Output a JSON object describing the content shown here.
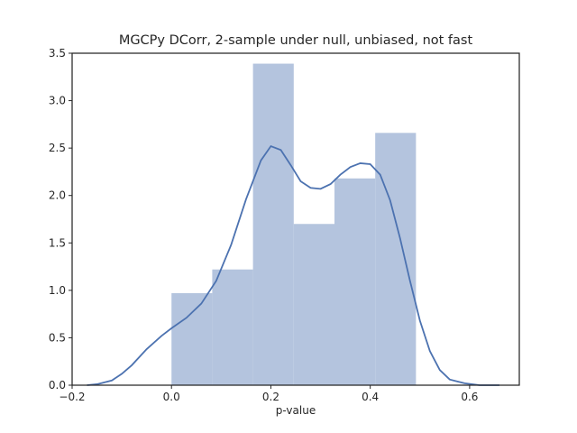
{
  "chart_data": {
    "type": "histogram",
    "title": "MGCPy DCorr, 2-sample under null, unbiased, not fast",
    "xlabel": "p-value",
    "ylabel": "",
    "xlim": [
      -0.2,
      0.7
    ],
    "ylim": [
      0.0,
      3.5
    ],
    "grid": false,
    "x_ticks": [
      -0.2,
      0.0,
      0.2,
      0.4,
      0.6
    ],
    "x_tick_labels": [
      "−0.2",
      "0.0",
      "0.2",
      "0.4",
      "0.6"
    ],
    "y_ticks": [
      0.0,
      0.5,
      1.0,
      1.5,
      2.0,
      2.5,
      3.0,
      3.5
    ],
    "y_tick_labels": [
      "0.0",
      "0.5",
      "1.0",
      "1.5",
      "2.0",
      "2.5",
      "3.0",
      "3.5"
    ],
    "bins": [
      {
        "x0": 0.0,
        "x1": 0.082,
        "density": 0.97
      },
      {
        "x0": 0.082,
        "x1": 0.164,
        "density": 1.22
      },
      {
        "x0": 0.164,
        "x1": 0.246,
        "density": 3.39
      },
      {
        "x0": 0.246,
        "x1": 0.328,
        "density": 1.7
      },
      {
        "x0": 0.328,
        "x1": 0.41,
        "density": 2.18
      },
      {
        "x0": 0.41,
        "x1": 0.492,
        "density": 2.66
      }
    ],
    "kde": {
      "x": [
        -0.17,
        -0.15,
        -0.12,
        -0.1,
        -0.08,
        -0.05,
        -0.02,
        0.0,
        0.03,
        0.06,
        0.09,
        0.12,
        0.15,
        0.18,
        0.2,
        0.22,
        0.24,
        0.26,
        0.28,
        0.3,
        0.32,
        0.34,
        0.36,
        0.38,
        0.4,
        0.42,
        0.44,
        0.46,
        0.48,
        0.5,
        0.52,
        0.54,
        0.56,
        0.59,
        0.62,
        0.66
      ],
      "y": [
        0.0,
        0.01,
        0.05,
        0.12,
        0.21,
        0.38,
        0.52,
        0.6,
        0.71,
        0.86,
        1.1,
        1.48,
        1.96,
        2.37,
        2.52,
        2.48,
        2.32,
        2.15,
        2.08,
        2.07,
        2.12,
        2.22,
        2.3,
        2.34,
        2.33,
        2.22,
        1.95,
        1.55,
        1.1,
        0.68,
        0.36,
        0.16,
        0.06,
        0.02,
        0.0,
        0.0
      ]
    },
    "colors": {
      "bar": "#b4c4de",
      "line": "#4c72b0",
      "axes": "#262626"
    }
  }
}
